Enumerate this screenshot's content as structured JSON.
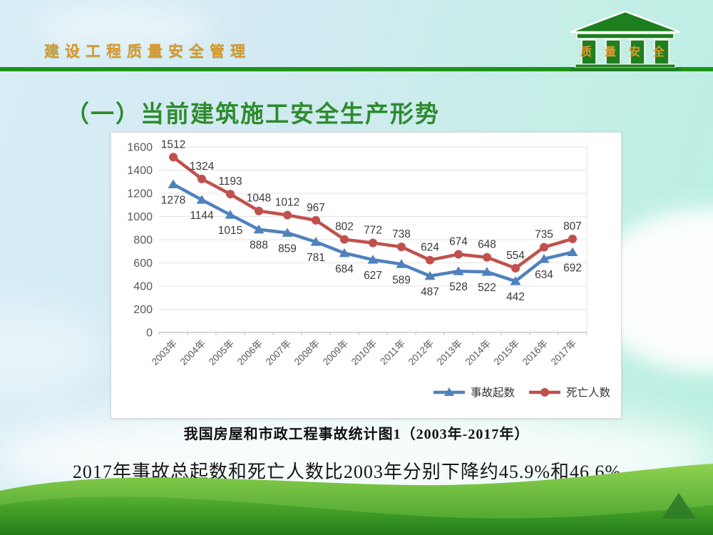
{
  "header": {
    "title": "建设工程质量安全管理",
    "logo_text": "质量安全"
  },
  "title": "（一）当前建筑施工安全生产形势",
  "chart_caption": "我国房屋和市政工程事故统计图1（2003年-2017年）",
  "footnote": "2017年事故总起数和死亡人数比2003年分别下降约45.9%和46.6%。",
  "colors": {
    "accent_green": "#1d9318",
    "title_green": "#2e8b2e",
    "header_orange": "#dd9728",
    "series_blue": "#4F81BD",
    "series_red": "#C0504D",
    "grid_gray": "#e3e3e3",
    "axis_gray": "#bfbfbf",
    "label_gray": "#3a3a3a",
    "tick_label_gray": "#595959"
  },
  "chart_data": {
    "type": "line",
    "title": "",
    "xlabel": "",
    "ylabel": "",
    "categories": [
      "2003年",
      "2004年",
      "2005年",
      "2006年",
      "2007年",
      "2008年",
      "2009年",
      "2010年",
      "2011年",
      "2012年",
      "2013年",
      "2014年",
      "2015年",
      "2016年",
      "2017年"
    ],
    "series": [
      {
        "name": "事故起数",
        "color": "#4F81BD",
        "marker": "triangle",
        "values": [
          1278,
          1144,
          1015,
          888,
          859,
          781,
          684,
          627,
          589,
          487,
          528,
          522,
          442,
          634,
          692
        ]
      },
      {
        "name": "死亡人数",
        "color": "#C0504D",
        "marker": "circle",
        "values": [
          1512,
          1324,
          1193,
          1048,
          1012,
          967,
          802,
          772,
          738,
          624,
          674,
          648,
          554,
          735,
          807
        ]
      }
    ],
    "ylim": [
      0,
      1600
    ],
    "ytick_step": 200,
    "grid": true,
    "data_labels": true,
    "legend_position": "bottom-right"
  }
}
